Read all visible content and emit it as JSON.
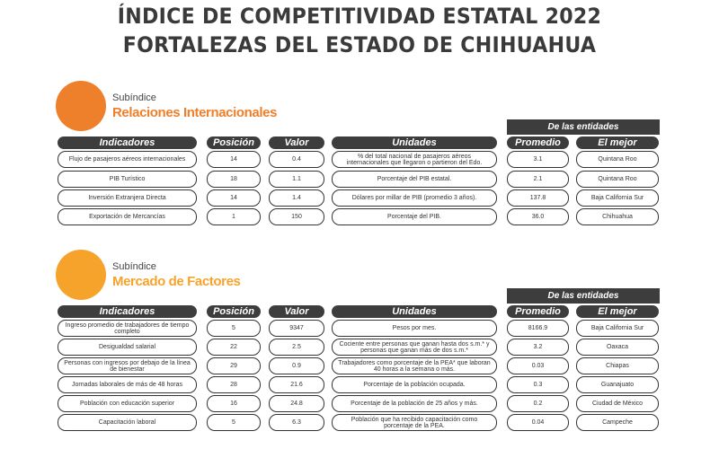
{
  "title_line1": "ÍNDICE DE COMPETITIVIDAD ESTATAL 2022",
  "title_line2": "FORTALEZAS DEL ESTADO DE CHIHUAHUA",
  "headers": {
    "indicadores": "Indicadores",
    "posicion": "Posición",
    "valor": "Valor",
    "unidades": "Unidades",
    "entidades": "De las entidades",
    "promedio": "Promedio",
    "mejor": "El mejor"
  },
  "colors": {
    "section1": "#ee7f2b",
    "section2": "#f6a32c",
    "header_bg": "#3d3d3d"
  },
  "sections": [
    {
      "label": "Subíndice",
      "name": "Relaciones Internacionales",
      "rows": [
        [
          "Flujo de pasajeros aéreos internacionales",
          "14",
          "0.4",
          "% del total nacional de pasajeros aéreos internacionales que llegaron o partieron del Edo.",
          "3.1",
          "Quintana Roo"
        ],
        [
          "PIB Turístico",
          "18",
          "1.1",
          "Porcentaje del PIB estatal.",
          "2.1",
          "Quintana Roo"
        ],
        [
          "Inversión Extranjera Directa",
          "14",
          "1.4",
          "Dólares por millar de PIB (promedio 3 años).",
          "137.8",
          "Baja California Sur"
        ],
        [
          "Exportación de Mercancías",
          "1",
          "150",
          "Porcentaje del PIB.",
          "36.0",
          "Chihuahua"
        ]
      ]
    },
    {
      "label": "Subíndice",
      "name": "Mercado de Factores",
      "rows": [
        [
          "Ingreso promedio de trabajadores de tiempo completo",
          "5",
          "9347",
          "Pesos por mes.",
          "8166.9",
          "Baja California Sur"
        ],
        [
          "Desigualdad salarial",
          "22",
          "2.5",
          "Cociente entre personas que ganan hasta dos s.m.* y personas que ganan más de dos s.m.*",
          "3.2",
          "Oaxaca"
        ],
        [
          "Personas con ingresos por debajo de la línea de bienestar",
          "29",
          "0.9",
          "Trabajadores como porcentaje de la PEA* que laboran 40 horas a la semana o más.",
          "0.03",
          "Chiapas"
        ],
        [
          "Jornadas laborales de más de 48 horas",
          "28",
          "21.6",
          "Porcentaje de la población ocupada.",
          "0.3",
          "Guanajuato"
        ],
        [
          "Población con educación superior",
          "16",
          "24.8",
          "Porcentaje de la población de 25 años y más.",
          "0.2",
          "Ciudad de México"
        ],
        [
          "Capacitación laboral",
          "5",
          "6.3",
          "Población que ha recibido capacitación como porcentaje de la PEA.",
          "0.04",
          "Campeche"
        ]
      ]
    }
  ]
}
